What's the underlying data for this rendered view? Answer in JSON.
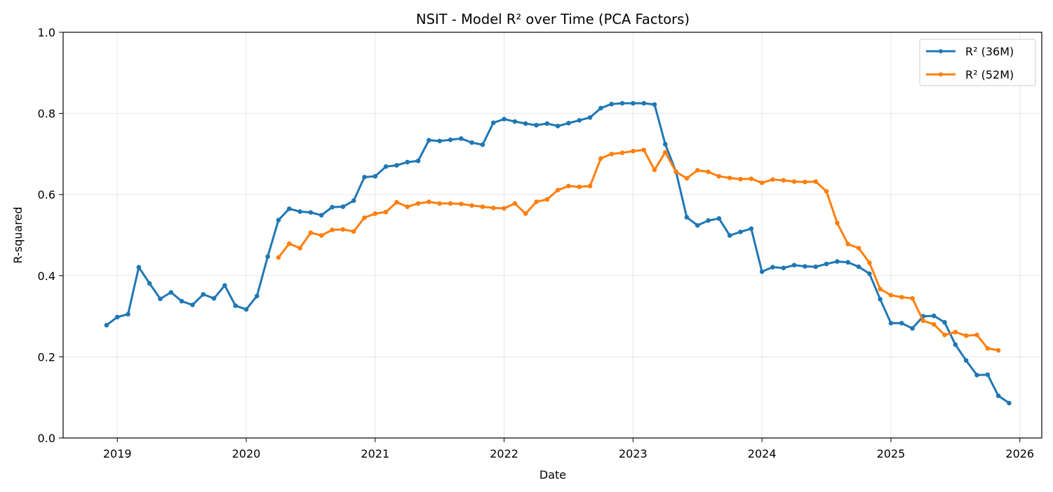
{
  "chart_data": {
    "type": "line",
    "title": "NSIT - Model R² over Time (PCA Factors)",
    "xlabel": "Date",
    "ylabel": "R-squared",
    "xlim": [
      2018.58,
      2026.17
    ],
    "ylim": [
      0.0,
      1.0
    ],
    "x_ticks": [
      2019,
      2020,
      2021,
      2022,
      2023,
      2024,
      2025,
      2026
    ],
    "x_tick_labels": [
      "2019",
      "2020",
      "2021",
      "2022",
      "2023",
      "2024",
      "2025",
      "2026"
    ],
    "y_ticks": [
      0.0,
      0.2,
      0.4,
      0.6,
      0.8,
      1.0
    ],
    "y_tick_labels": [
      "0.0",
      "0.2",
      "0.4",
      "0.6",
      "0.8",
      "1.0"
    ],
    "grid": true,
    "legend_position": "top-right",
    "series": [
      {
        "name": "R² (36M)",
        "color": "#1f77b4",
        "start_year": 2018,
        "start_month": 12,
        "values": [
          0.278,
          0.298,
          0.305,
          0.421,
          0.381,
          0.343,
          0.359,
          0.337,
          0.328,
          0.354,
          0.344,
          0.376,
          0.326,
          0.317,
          0.35,
          0.447,
          0.537,
          0.565,
          0.558,
          0.556,
          0.549,
          0.569,
          0.57,
          0.585,
          0.643,
          0.645,
          0.669,
          0.672,
          0.68,
          0.683,
          0.734,
          0.732,
          0.735,
          0.738,
          0.728,
          0.723,
          0.777,
          0.786,
          0.78,
          0.775,
          0.771,
          0.775,
          0.769,
          0.776,
          0.783,
          0.79,
          0.813,
          0.823,
          0.825,
          0.825,
          0.825,
          0.822,
          0.724,
          0.656,
          0.544,
          0.524,
          0.536,
          0.541,
          0.499,
          0.508,
          0.516,
          0.41,
          0.421,
          0.419,
          0.426,
          0.423,
          0.422,
          0.429,
          0.435,
          0.433,
          0.422,
          0.405,
          0.342,
          0.283,
          0.283,
          0.27,
          0.3,
          0.301,
          0.285,
          0.23,
          0.191,
          0.155,
          0.156,
          0.104,
          0.086
        ]
      },
      {
        "name": "R² (52M)",
        "color": "#ff7f0e",
        "start_year": 2020,
        "start_month": 4,
        "values": [
          0.445,
          0.479,
          0.468,
          0.506,
          0.499,
          0.513,
          0.514,
          0.509,
          0.543,
          0.553,
          0.557,
          0.581,
          0.57,
          0.578,
          0.582,
          0.578,
          0.578,
          0.577,
          0.573,
          0.57,
          0.567,
          0.566,
          0.578,
          0.553,
          0.582,
          0.588,
          0.611,
          0.621,
          0.619,
          0.621,
          0.689,
          0.7,
          0.703,
          0.707,
          0.71,
          0.661,
          0.704,
          0.656,
          0.64,
          0.66,
          0.656,
          0.645,
          0.641,
          0.638,
          0.639,
          0.629,
          0.637,
          0.635,
          0.632,
          0.631,
          0.632,
          0.608,
          0.53,
          0.478,
          0.468,
          0.432,
          0.367,
          0.352,
          0.347,
          0.344,
          0.289,
          0.28,
          0.254,
          0.261,
          0.252,
          0.254,
          0.221,
          0.216
        ]
      }
    ]
  }
}
